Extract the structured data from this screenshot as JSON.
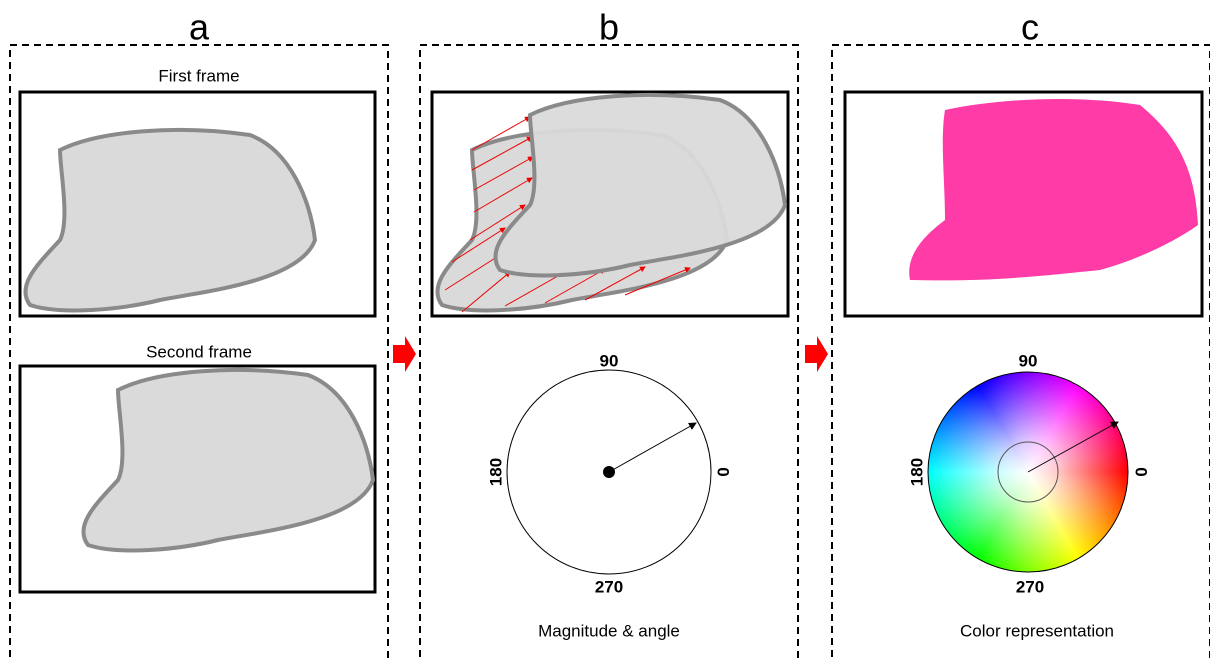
{
  "panels": [
    {
      "label": "a",
      "frames": [
        "First frame",
        "Second frame"
      ]
    },
    {
      "label": "b",
      "compass": [
        "90",
        "0",
        "180",
        "270"
      ],
      "caption": "Magnitude & angle"
    },
    {
      "label": "c",
      "compass": [
        "90",
        "0",
        "180",
        "270"
      ],
      "caption": "Color representation"
    }
  ]
}
